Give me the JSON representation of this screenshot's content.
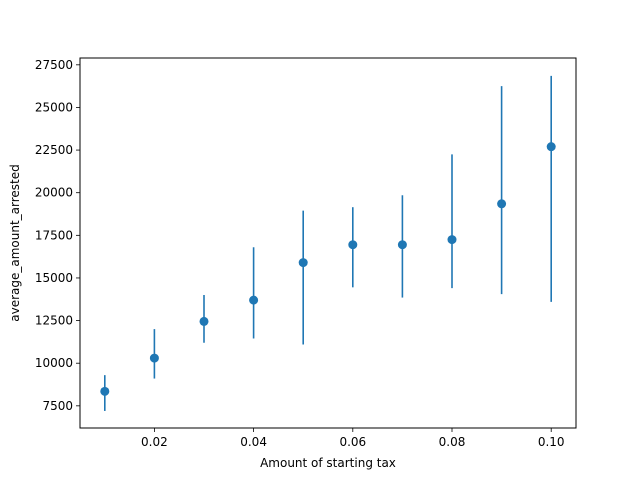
{
  "chart_data": {
    "type": "scatter",
    "title": "",
    "xlabel": "Amount of starting tax",
    "ylabel": "average_amount_arrested",
    "xlim": [
      0.005,
      0.105
    ],
    "ylim": [
      6200,
      27900
    ],
    "x_ticks": [
      0.02,
      0.04,
      0.06,
      0.08,
      0.1
    ],
    "x_tick_labels": [
      "0.02",
      "0.04",
      "0.06",
      "0.08",
      "0.10"
    ],
    "y_ticks": [
      7500,
      10000,
      12500,
      15000,
      17500,
      20000,
      22500,
      25000,
      27500
    ],
    "y_tick_labels": [
      "7500",
      "10000",
      "12500",
      "15000",
      "17500",
      "20000",
      "22500",
      "25000",
      "27500"
    ],
    "grid": false,
    "color": "#1f77b4",
    "points": [
      {
        "x": 0.01,
        "y": 8350,
        "low": 7200,
        "high": 9300
      },
      {
        "x": 0.02,
        "y": 10300,
        "low": 9100,
        "high": 12000
      },
      {
        "x": 0.03,
        "y": 12450,
        "low": 11200,
        "high": 14000
      },
      {
        "x": 0.04,
        "y": 13700,
        "low": 11450,
        "high": 16800
      },
      {
        "x": 0.05,
        "y": 15900,
        "low": 11100,
        "high": 18950
      },
      {
        "x": 0.06,
        "y": 16950,
        "low": 14450,
        "high": 19150
      },
      {
        "x": 0.07,
        "y": 16950,
        "low": 13850,
        "high": 19850
      },
      {
        "x": 0.08,
        "y": 17250,
        "low": 14400,
        "high": 22250
      },
      {
        "x": 0.09,
        "y": 19350,
        "low": 14050,
        "high": 26250
      },
      {
        "x": 0.1,
        "y": 22700,
        "low": 13600,
        "high": 26850
      }
    ]
  }
}
